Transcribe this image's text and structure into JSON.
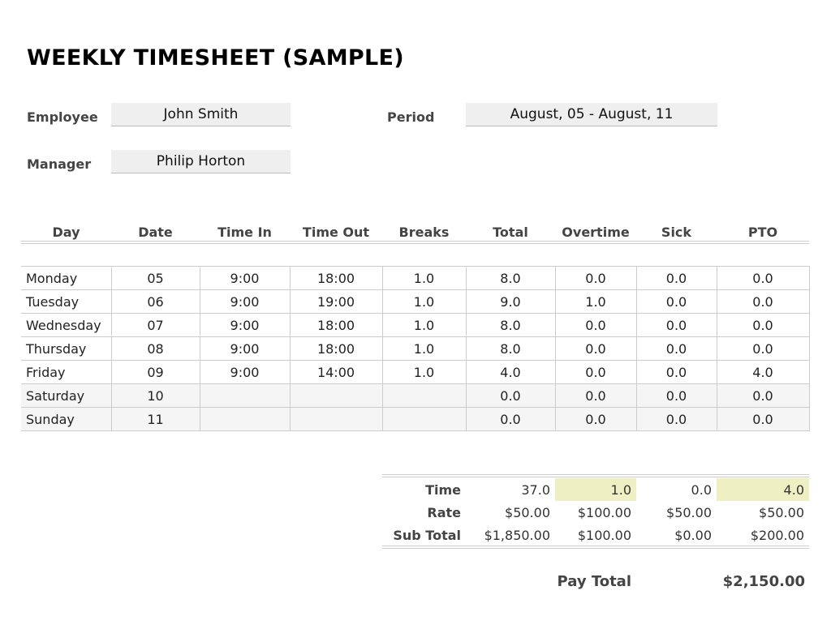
{
  "title": "WEEKLY TIMESHEET (SAMPLE)",
  "info": {
    "employee_label": "Employee",
    "employee": "John Smith",
    "manager_label": "Manager",
    "manager": "Philip Horton",
    "period_label": "Period",
    "period": "August, 05 - August, 11"
  },
  "columns": [
    "Day",
    "Date",
    "Time In",
    "Time Out",
    "Breaks",
    "Total",
    "Overtime",
    "Sick",
    "PTO"
  ],
  "rows": [
    [
      "Monday",
      "05",
      "9:00",
      "18:00",
      "1.0",
      "8.0",
      "0.0",
      "0.0",
      "0.0"
    ],
    [
      "Tuesday",
      "06",
      "9:00",
      "19:00",
      "1.0",
      "9.0",
      "1.0",
      "0.0",
      "0.0"
    ],
    [
      "Wednesday",
      "07",
      "9:00",
      "18:00",
      "1.0",
      "8.0",
      "0.0",
      "0.0",
      "0.0"
    ],
    [
      "Thursday",
      "08",
      "9:00",
      "18:00",
      "1.0",
      "8.0",
      "0.0",
      "0.0",
      "0.0"
    ],
    [
      "Friday",
      "09",
      "9:00",
      "14:00",
      "1.0",
      "4.0",
      "0.0",
      "0.0",
      "4.0"
    ],
    [
      "Saturday",
      "10",
      "",
      "",
      "",
      "0.0",
      "0.0",
      "0.0",
      "0.0"
    ],
    [
      "Sunday",
      "11",
      "",
      "",
      "",
      "0.0",
      "0.0",
      "0.0",
      "0.0"
    ]
  ],
  "summary": [
    {
      "label": "Time",
      "values": [
        "37.0",
        "1.0",
        "0.0",
        "4.0"
      ]
    },
    {
      "label": "Rate",
      "values": [
        "$50.00",
        "$100.00",
        "$50.00",
        "$50.00"
      ]
    },
    {
      "label": "Sub Total",
      "values": [
        "$1,850.00",
        "$100.00",
        "$0.00",
        "$200.00"
      ]
    }
  ],
  "pay_total_label": "Pay Total",
  "pay_total": "$2,150.00",
  "colors": {
    "highlight": "#eef0c4",
    "weekend_row": "#f5f5f5",
    "field_bg": "#efefef"
  }
}
